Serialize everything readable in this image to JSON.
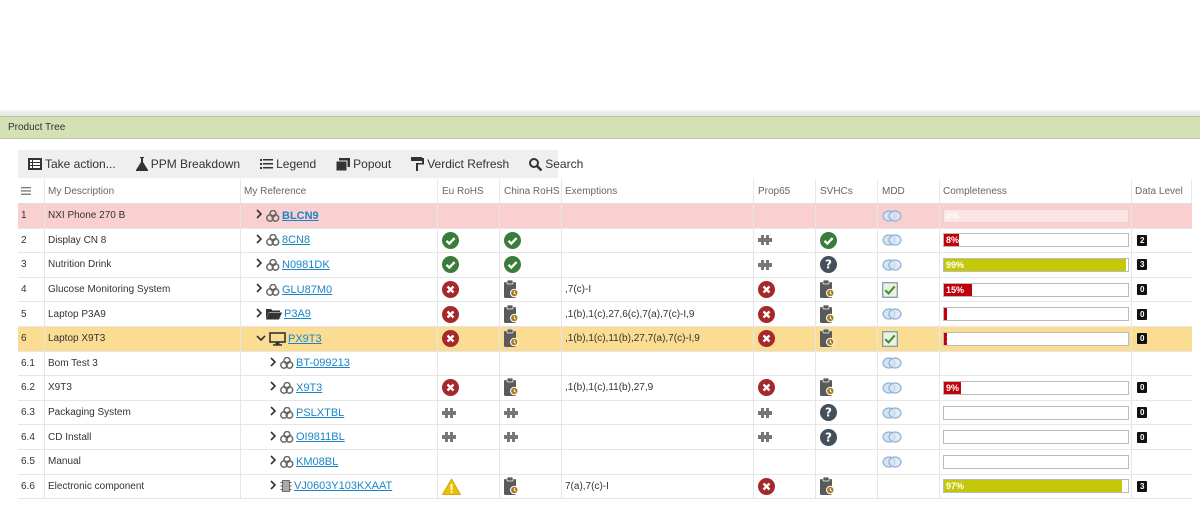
{
  "panel": {
    "title": "Product Tree"
  },
  "toolbar": {
    "take_action": "Take action...",
    "ppm": "PPM Breakdown",
    "legend": "Legend",
    "popout": "Popout",
    "verdict": "Verdict Refresh",
    "search": "Search"
  },
  "columns": {
    "desc": "My Description",
    "ref": "My Reference",
    "eu": "Eu RoHS",
    "cn": "China RoHS",
    "ex": "Exemptions",
    "p65": "Prop65",
    "svhc": "SVHCs",
    "mdd": "MDD",
    "comp": "Completeness",
    "dl": "Data Level"
  },
  "rows": [
    {
      "num": "1",
      "desc": "NXI Phone 270 B",
      "ref": "BLCN9",
      "ex": "",
      "comp": "0%",
      "dl": ""
    },
    {
      "num": "2",
      "desc": "Display CN 8",
      "ref": "8CN8",
      "ex": "",
      "comp": "8%",
      "dl": "2"
    },
    {
      "num": "3",
      "desc": "Nutrition Drink",
      "ref": "N0981DK",
      "ex": "",
      "comp": "99%",
      "dl": "3"
    },
    {
      "num": "4",
      "desc": "Glucose Monitoring System",
      "ref": "GLU87M0",
      "ex": ",7(c)-I",
      "comp": "15%",
      "dl": "0"
    },
    {
      "num": "5",
      "desc": "Laptop P3A9",
      "ref": "P3A9",
      "ex": ",1(b),1(c),27,6(c),7(a),7(c)-I,9",
      "comp": "",
      "dl": "0"
    },
    {
      "num": "6",
      "desc": "Laptop X9T3",
      "ref": "PX9T3",
      "ex": ",1(b),1(c),11(b),27,7(a),7(c)-I,9",
      "comp": "1%",
      "dl": "0"
    },
    {
      "num": "6.1",
      "desc": "Bom Test 3",
      "ref": "BT-099213",
      "ex": "",
      "comp": "",
      "dl": ""
    },
    {
      "num": "6.2",
      "desc": "X9T3",
      "ref": "X9T3",
      "ex": ",1(b),1(c),11(b),27,9",
      "comp": "9%",
      "dl": "0"
    },
    {
      "num": "6.3",
      "desc": "Packaging System",
      "ref": "PSLXTBL",
      "ex": "",
      "comp": "",
      "dl": "0"
    },
    {
      "num": "6.4",
      "desc": "CD Install",
      "ref": "OI9811BL",
      "ex": "",
      "comp": "",
      "dl": "0"
    },
    {
      "num": "6.5",
      "desc": "Manual",
      "ref": "KM08BL",
      "ex": "",
      "comp": "",
      "dl": ""
    },
    {
      "num": "6.6",
      "desc": "Electronic component",
      "ref": "VJ0603Y103KXAAT",
      "ex": "7(a),7(c)-I",
      "comp": "97%",
      "dl": "3"
    }
  ],
  "icons": {
    "eu": [
      "",
      "check-icon",
      "check-icon",
      "cross-icon",
      "cross-icon",
      "cross-icon",
      "",
      "cross-icon",
      "puzzle-icon",
      "puzzle-icon",
      "",
      "warning-icon"
    ],
    "cn": [
      "",
      "check-icon",
      "check-icon",
      "clipboard-icon",
      "clipboard-icon",
      "clipboard-icon",
      "",
      "clipboard-icon",
      "puzzle-icon",
      "puzzle-icon",
      "",
      "clipboard-icon"
    ],
    "p65": [
      "",
      "puzzle-icon",
      "puzzle-icon",
      "cross-icon",
      "cross-icon",
      "cross-icon",
      "",
      "cross-icon",
      "puzzle-icon",
      "puzzle-icon",
      "",
      "cross-icon"
    ],
    "svhc": [
      "",
      "check-icon",
      "question-icon",
      "clipboard-icon",
      "clipboard-icon",
      "clipboard-icon",
      "",
      "clipboard-icon",
      "question-icon",
      "question-icon",
      "",
      "clipboard-icon"
    ],
    "mdd": [
      "rings-icon",
      "rings-icon",
      "rings-icon",
      "checkbox-icon",
      "rings-icon",
      "checkbox-icon",
      "rings-icon",
      "rings-icon",
      "rings-icon",
      "rings-icon",
      "rings-icon",
      ""
    ],
    "ref": [
      "parts-icon",
      "parts-icon",
      "parts-icon",
      "parts-icon",
      "folder-icon",
      "monitor-icon",
      "parts-icon",
      "parts-icon",
      "parts-icon",
      "parts-icon",
      "parts-icon",
      "chip-icon"
    ]
  },
  "completeness_values": [
    0,
    8,
    99,
    15,
    1,
    1,
    null,
    9,
    0,
    0,
    0,
    97
  ],
  "colors": {
    "bar_red": "#c0000b",
    "bar_olive": "#c4c806",
    "check": "#3a7d3b",
    "cross": "#a5282b",
    "dark": "#555555"
  }
}
